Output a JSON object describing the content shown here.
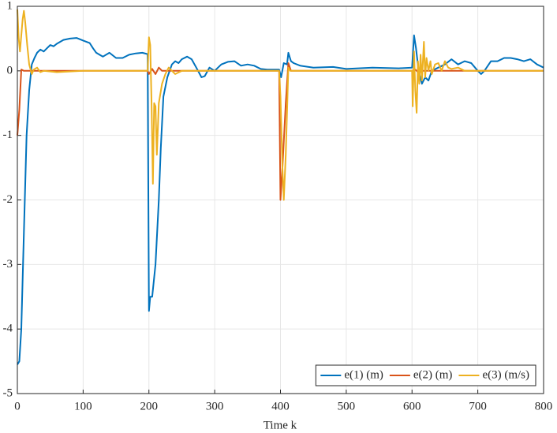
{
  "chart_data": {
    "type": "line",
    "x_label": "Time k",
    "xlim": [
      0,
      800
    ],
    "xticks": [
      0,
      100,
      200,
      300,
      400,
      500,
      600,
      700,
      800
    ],
    "ylim": [
      -5,
      1
    ],
    "yticks": [
      -5,
      -4,
      -3,
      -2,
      -1,
      0,
      1
    ],
    "grid": true,
    "legend": "lower right",
    "series": [
      {
        "name": "e(1) (m)",
        "color": "#0072BD",
        "x": [
          0,
          3,
          6,
          10,
          14,
          18,
          22,
          26,
          30,
          35,
          40,
          45,
          50,
          55,
          60,
          70,
          80,
          90,
          100,
          110,
          115,
          120,
          125,
          130,
          140,
          150,
          160,
          170,
          180,
          190,
          198,
          200,
          202,
          205,
          210,
          215,
          218,
          222,
          228,
          235,
          240,
          245,
          250,
          258,
          265,
          272,
          280,
          285,
          292,
          300,
          310,
          320,
          330,
          340,
          350,
          360,
          370,
          380,
          398,
          401,
          405,
          410,
          412,
          416,
          420,
          430,
          450,
          480,
          500,
          540,
          580,
          600,
          603,
          606,
          610,
          615,
          620,
          625,
          630,
          640,
          650,
          660,
          670,
          680,
          690,
          700,
          705,
          710,
          720,
          730,
          740,
          750,
          760,
          770,
          780,
          790,
          800
        ],
        "values": [
          -4.55,
          -4.5,
          -4.0,
          -2.5,
          -1.0,
          -0.3,
          0.1,
          0.2,
          0.28,
          0.33,
          0.3,
          0.35,
          0.4,
          0.38,
          0.42,
          0.48,
          0.5,
          0.51,
          0.47,
          0.43,
          0.35,
          0.28,
          0.25,
          0.22,
          0.28,
          0.2,
          0.2,
          0.25,
          0.27,
          0.28,
          0.26,
          -3.72,
          -3.5,
          -3.5,
          -3.0,
          -2.0,
          -1.2,
          -0.4,
          -0.1,
          0.1,
          0.15,
          0.12,
          0.18,
          0.22,
          0.18,
          0.05,
          -0.1,
          -0.08,
          0.05,
          0.0,
          0.1,
          0.14,
          0.15,
          0.08,
          0.1,
          0.08,
          0.03,
          0.02,
          0.02,
          -0.1,
          0.12,
          0.1,
          0.28,
          0.15,
          0.12,
          0.08,
          0.05,
          0.06,
          0.03,
          0.05,
          0.04,
          0.05,
          0.55,
          0.35,
          0.0,
          -0.2,
          -0.1,
          -0.15,
          0.0,
          0.05,
          0.1,
          0.18,
          0.1,
          0.15,
          0.12,
          0.0,
          -0.05,
          0.0,
          0.15,
          0.15,
          0.2,
          0.2,
          0.18,
          0.15,
          0.18,
          0.1,
          0.05
        ]
      },
      {
        "name": "e(2) (m)",
        "color": "#D95319",
        "x": [
          0,
          3,
          6,
          10,
          198,
          200,
          205,
          210,
          215,
          220,
          398,
          400,
          403,
          408,
          412,
          416,
          600,
          605,
          610,
          615,
          800
        ],
        "values": [
          -1.0,
          -0.6,
          0.02,
          0.0,
          0.0,
          -0.05,
          0.03,
          -0.05,
          0.05,
          0.0,
          0.0,
          -2.0,
          -1.5,
          -0.5,
          0.12,
          0.0,
          0.0,
          0.02,
          -0.03,
          0.0,
          0.0
        ]
      },
      {
        "name": "e(3) (m/s)",
        "color": "#EDB120",
        "x": [
          0,
          2,
          4,
          6,
          8,
          10,
          12,
          15,
          18,
          22,
          25,
          30,
          35,
          40,
          60,
          100,
          198,
          200,
          202,
          204,
          206,
          208,
          210,
          212,
          215,
          220,
          225,
          230,
          240,
          250,
          398,
          400,
          403,
          405,
          408,
          412,
          415,
          600,
          601,
          603,
          605,
          607,
          609,
          611,
          613,
          615,
          618,
          620,
          622,
          625,
          628,
          630,
          635,
          640,
          645,
          650,
          655,
          660,
          670,
          680,
          700,
          800
        ],
        "values": [
          0.95,
          0.5,
          0.3,
          0.55,
          0.8,
          0.93,
          0.75,
          0.4,
          0.1,
          -0.05,
          0.02,
          0.05,
          -0.02,
          0.0,
          -0.02,
          0.0,
          0.0,
          0.52,
          0.4,
          -0.5,
          -1.75,
          -0.5,
          -0.55,
          -1.3,
          -0.5,
          -0.2,
          -0.05,
          0.05,
          -0.05,
          0.0,
          0.0,
          -0.4,
          -1.5,
          -2.0,
          -1.3,
          0.05,
          0.0,
          0.0,
          -0.55,
          0.3,
          -0.3,
          -0.65,
          0.15,
          -0.2,
          0.25,
          -0.15,
          0.45,
          -0.1,
          0.2,
          0.0,
          0.15,
          -0.05,
          0.1,
          0.12,
          0.0,
          0.15,
          0.05,
          0.03,
          0.05,
          0.0,
          0.0,
          0.0
        ]
      }
    ]
  }
}
